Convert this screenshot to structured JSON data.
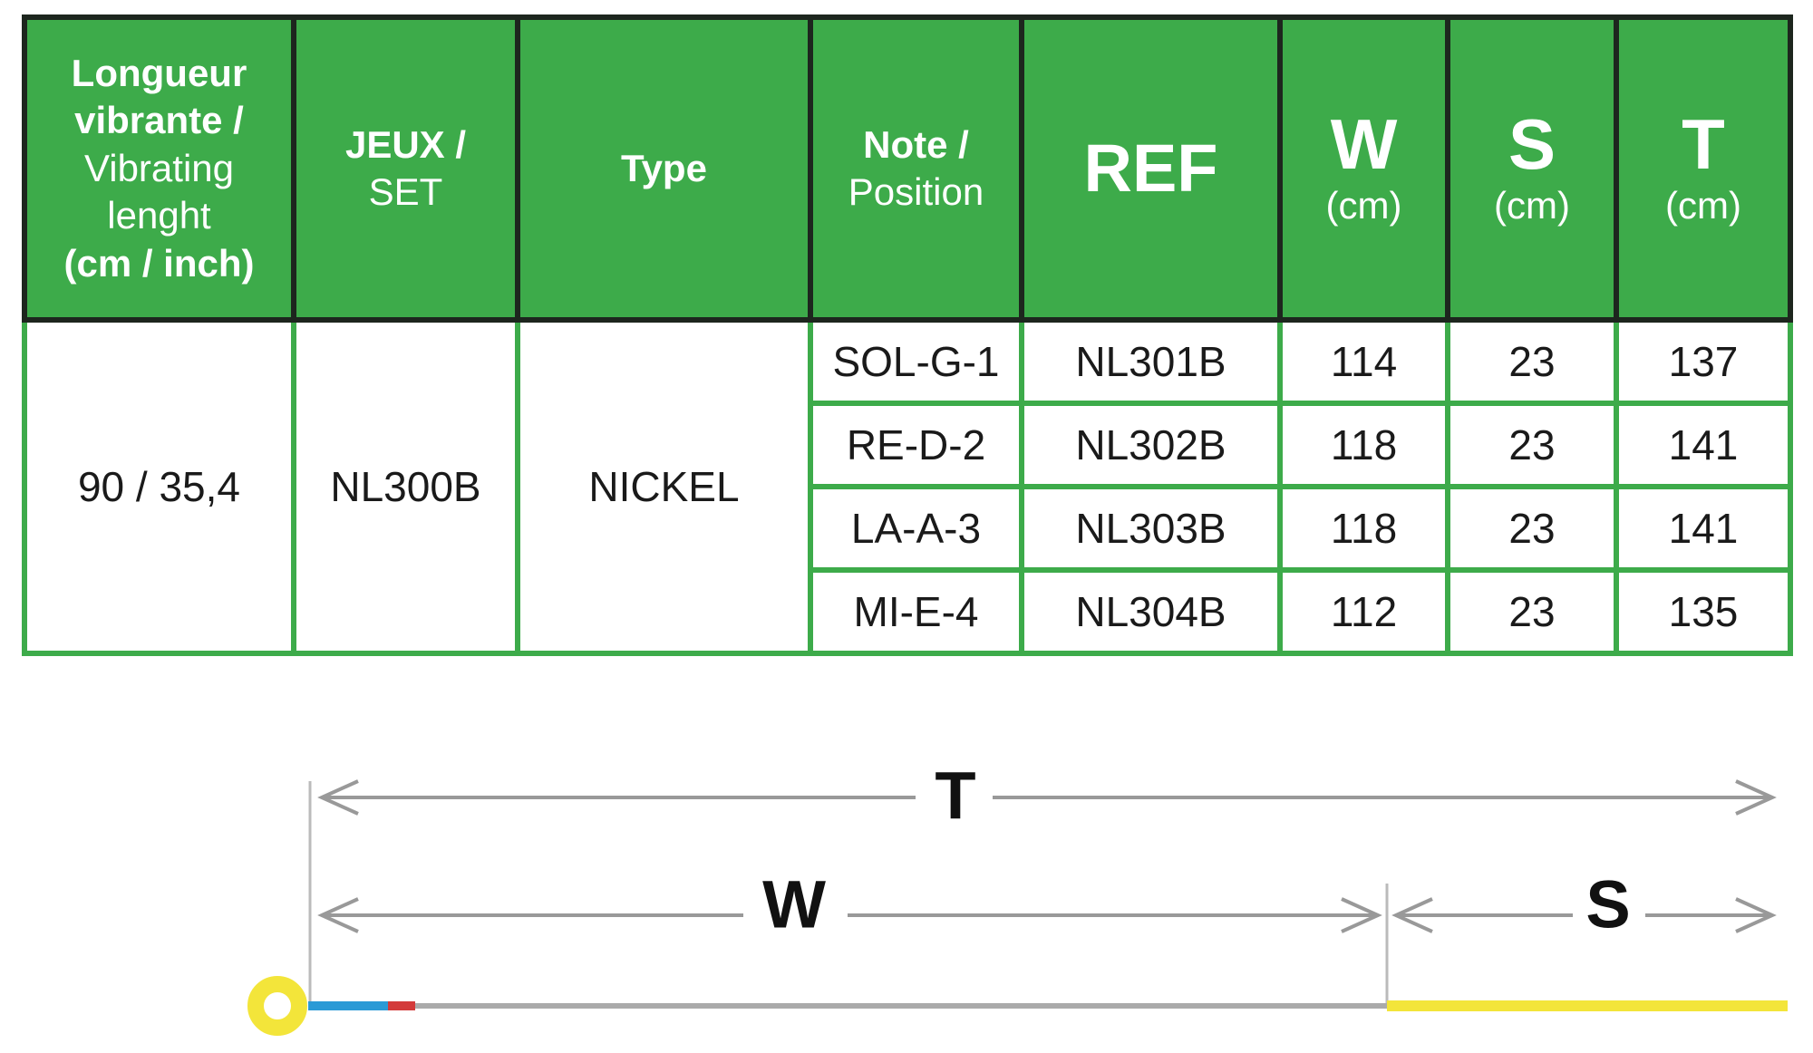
{
  "table": {
    "header": [
      [
        "Longueur vibrante /",
        "Vibrating lenght",
        "(cm / inch)"
      ],
      [
        "JEUX /",
        "SET"
      ],
      [
        "Type"
      ],
      [
        "Note /",
        "Position"
      ],
      [
        "REF"
      ],
      [
        "W",
        "(cm)"
      ],
      [
        "S",
        "(cm)"
      ],
      [
        "T",
        "(cm)"
      ]
    ],
    "length": "90 / 35,4",
    "set": "NL300B",
    "type": "NICKEL",
    "rows": [
      [
        "SOL-G-1",
        "NL301B",
        114,
        23,
        137
      ],
      [
        "RE-D-2",
        "NL302B",
        118,
        23,
        141
      ],
      [
        "LA-A-3",
        "NL303B",
        118,
        23,
        141
      ],
      [
        "MI-E-4",
        "NL304B",
        112,
        23,
        135
      ]
    ]
  },
  "diagram": {
    "total": "T",
    "wound": "W",
    "silk": "S"
  }
}
